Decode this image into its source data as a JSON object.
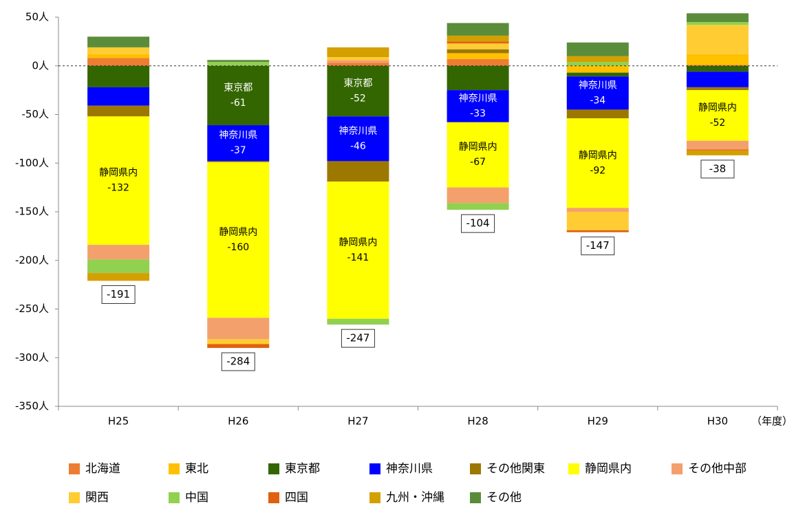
{
  "chart_data": {
    "type": "stacked-bar",
    "categories": [
      "H25",
      "H26",
      "H27",
      "H28",
      "H29",
      "H30"
    ],
    "x_unit": "（年度）",
    "ylim": [
      -350,
      50
    ],
    "yticks": [
      {
        "value": 50,
        "label": "50人"
      },
      {
        "value": 0,
        "label": "0人"
      },
      {
        "value": -50,
        "label": "-50人"
      },
      {
        "value": -100,
        "label": "-100人"
      },
      {
        "value": -150,
        "label": "-150人"
      },
      {
        "value": -200,
        "label": "-200人"
      },
      {
        "value": -250,
        "label": "-250人"
      },
      {
        "value": -300,
        "label": "-300人"
      },
      {
        "value": -350,
        "label": "-350人"
      }
    ],
    "totals": [
      -191,
      -284,
      -247,
      -104,
      -147,
      -38
    ],
    "series": [
      {
        "name": "北海道",
        "color": "#ed7d31",
        "values": [
          8,
          0,
          3,
          7,
          0,
          1
        ]
      },
      {
        "name": "東北",
        "color": "#ffc000",
        "values": [
          4,
          0,
          0,
          6,
          -7,
          11
        ]
      },
      {
        "name": "東京都",
        "color": "#336600",
        "values": [
          -22,
          -61,
          -52,
          -25,
          -4,
          -6
        ]
      },
      {
        "name": "神奈川県",
        "color": "#0000ff",
        "values": [
          -19,
          -37,
          -46,
          -33,
          -34,
          -16
        ]
      },
      {
        "name": "その他関東",
        "color": "#9c7800",
        "values": [
          -11,
          -1,
          -21,
          4,
          -9,
          -3
        ]
      },
      {
        "name": "静岡県内",
        "color": "#ffff00",
        "values": [
          -132,
          -160,
          -141,
          -67,
          -92,
          -52
        ]
      },
      {
        "name": "その他中部",
        "color": "#f4a06c",
        "values": [
          -15,
          -22,
          3,
          -16,
          -4,
          -9
        ]
      },
      {
        "name": "関西",
        "color": "#ffcc33",
        "values": [
          7,
          -5,
          3,
          6,
          -19,
          30
        ]
      },
      {
        "name": "中国",
        "color": "#92d050",
        "values": [
          -14,
          4,
          -6,
          -7,
          4,
          3
        ]
      },
      {
        "name": "四国",
        "color": "#e06010",
        "values": [
          0,
          -4,
          0,
          2,
          -2,
          -1
        ]
      },
      {
        "name": "九州・沖縄",
        "color": "#d4a000",
        "values": [
          -8,
          0,
          10,
          6,
          6,
          -5
        ]
      },
      {
        "name": "その他",
        "color": "#5b8c3a",
        "values": [
          11,
          2,
          0,
          13,
          14,
          9
        ]
      }
    ]
  }
}
